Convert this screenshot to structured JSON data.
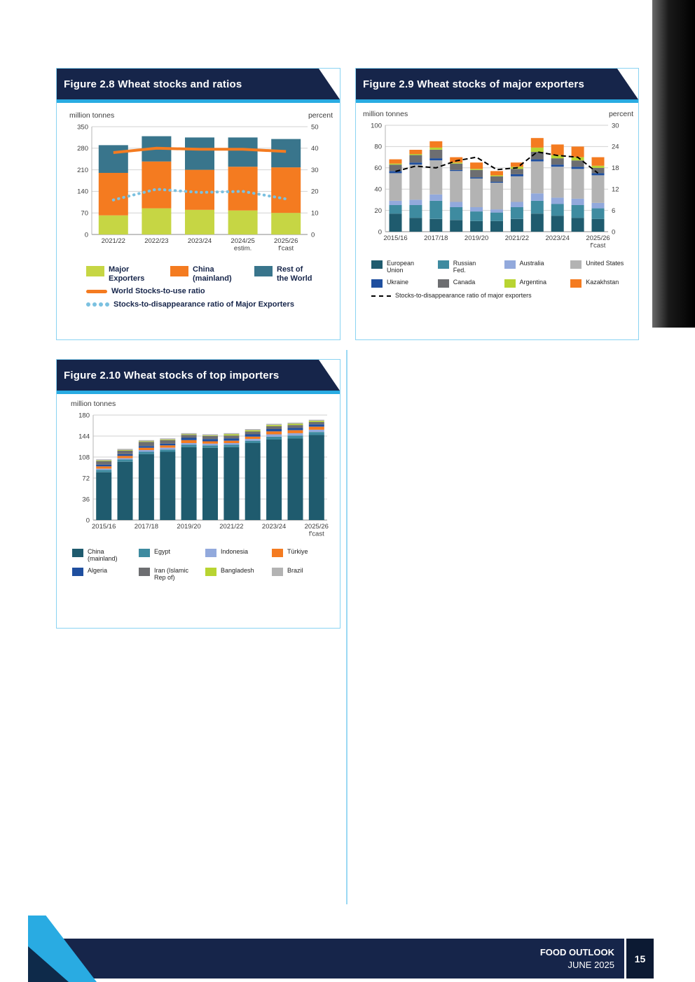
{
  "theme": {
    "header_navy": "#16254a",
    "accent_cyan": "#29abe2",
    "page_number_box": "#0c1a33"
  },
  "footer": {
    "line1": "FOOD OUTLOOK",
    "line2": "JUNE 2025",
    "page_number": "15"
  },
  "figures": [
    {
      "id": "fig28",
      "title": "Figure 2.8 Wheat stocks and ratios",
      "chart_data": {
        "type": "bar",
        "stacked": true,
        "ylabel_left": "million tonnes",
        "ylabel_right": "percent",
        "ylim_left": [
          0,
          350
        ],
        "yticks_left": [
          0,
          70,
          140,
          210,
          280,
          350
        ],
        "ylim_right": [
          0,
          50
        ],
        "yticks_right": [
          0,
          10,
          20,
          30,
          40,
          50
        ],
        "grid": true,
        "categories": [
          "2021/22",
          "2022/23",
          "2023/24",
          "2024/25\nestim.",
          "2025/26\nf'cast"
        ],
        "series": [
          {
            "name": "Major Exporters",
            "color": "#c6d644",
            "values": [
              62,
              85,
              80,
              78,
              70
            ]
          },
          {
            "name": "China (mainland)",
            "color": "#f47b20",
            "values": [
              138,
              152,
              130,
              142,
              148
            ]
          },
          {
            "name": "Rest of the World",
            "color": "#39758c",
            "values": [
              90,
              82,
              105,
              95,
              92
            ]
          }
        ],
        "lines": [
          {
            "name": "World Stocks-to-use ratio",
            "color": "#f47b20",
            "style": "solid",
            "axis": "right",
            "values": [
              38,
              40,
              39.5,
              39.5,
              38.5
            ]
          },
          {
            "name": "Stocks-to-disappearance ratio of Major Exporters",
            "color": "#7bc1e0",
            "style": "dotted",
            "axis": "right",
            "values": [
              16,
              21,
              19.5,
              20,
              16.5
            ]
          }
        ]
      },
      "legend": [
        [
          {
            "type": "rect",
            "color": "#c6d644",
            "label": "Major\nExporters"
          },
          {
            "type": "rect",
            "color": "#f47b20",
            "label": "China\n(mainland)"
          },
          {
            "type": "rect",
            "color": "#39758c",
            "label": "Rest of\nthe World"
          }
        ],
        [
          {
            "type": "line",
            "color": "#f47b20",
            "label": "World Stocks-to-use ratio"
          }
        ],
        [
          {
            "type": "dots",
            "color": "#7bc1e0",
            "label": "Stocks-to-disappearance ratio of Major Exporters"
          }
        ]
      ]
    },
    {
      "id": "fig29",
      "title": "Figure 2.9 Wheat stocks of major exporters",
      "chart_data": {
        "type": "bar",
        "stacked": true,
        "ylabel_left": "million tonnes",
        "ylabel_right": "percent",
        "ylim_left": [
          0,
          100
        ],
        "yticks_left": [
          0,
          20,
          40,
          60,
          80,
          100
        ],
        "ylim_right": [
          0,
          30
        ],
        "yticks_right": [
          0,
          6,
          12,
          18,
          24,
          30
        ],
        "grid": true,
        "categories": [
          "2015/16",
          "2016/17",
          "2017/18",
          "2018/19",
          "2019/20",
          "2020/21",
          "2021/22",
          "2022/23",
          "2023/24",
          "2024/25",
          "2025/26"
        ],
        "xtick_labels": [
          "2015/16",
          "",
          "2017/18",
          "",
          "2019/20",
          "",
          "2021/22",
          "",
          "2023/24",
          "",
          "2025/26\nf'cast"
        ],
        "series": [
          {
            "name": "European Union",
            "color": "#1f5b6e",
            "values": [
              17,
              13,
              12,
              11,
              10,
              10,
              12,
              17,
              15,
              13,
              12
            ]
          },
          {
            "name": "Russian Fed.",
            "color": "#3e8ba0",
            "values": [
              8,
              12,
              17,
              12,
              9,
              8,
              11,
              12,
              11,
              12,
              10
            ]
          },
          {
            "name": "Australia",
            "color": "#92a9dc",
            "values": [
              4,
              5,
              6,
              5,
              4,
              3,
              5,
              7,
              6,
              6,
              5
            ]
          },
          {
            "name": "United States",
            "color": "#b3b3b3",
            "values": [
              26,
              33,
              32,
              29,
              27,
              25,
              24,
              30,
              29,
              28,
              26
            ]
          },
          {
            "name": "Ukraine",
            "color": "#1f4f9f",
            "values": [
              2,
              2,
              2,
              1,
              1,
              1,
              2,
              2,
              2,
              2,
              2
            ]
          },
          {
            "name": "Canada",
            "color": "#6d6e71",
            "values": [
              6,
              7,
              8,
              6,
              7,
              5,
              5,
              7,
              6,
              6,
              5
            ]
          },
          {
            "name": "Argentina",
            "color": "#b8d432",
            "values": [
              1,
              1,
              2,
              1,
              1,
              1,
              2,
              4,
              3,
              3,
              2
            ]
          },
          {
            "name": "Kazakhstan",
            "color": "#f47b20",
            "values": [
              4,
              4,
              6,
              5,
              6,
              4,
              4,
              9,
              10,
              10,
              8
            ]
          }
        ],
        "lines": [
          {
            "name": "Stocks-to-disappearance ratio of major exporters",
            "color": "#000000",
            "style": "dashed",
            "axis": "right",
            "values": [
              17,
              18.5,
              18,
              20,
              21,
              17.5,
              18,
              22.5,
              21.5,
              21,
              16.5
            ]
          }
        ]
      },
      "legend": [
        [
          {
            "type": "rect",
            "color": "#1f5b6e",
            "label": "European Union"
          },
          {
            "type": "rect",
            "color": "#3e8ba0",
            "label": "Russian\nFed."
          },
          {
            "type": "rect",
            "color": "#92a9dc",
            "label": "Australia"
          },
          {
            "type": "rect",
            "color": "#b3b3b3",
            "label": "United States"
          }
        ],
        [
          {
            "type": "rect",
            "color": "#1f4f9f",
            "label": "Ukraine"
          },
          {
            "type": "rect",
            "color": "#6d6e71",
            "label": "Canada"
          },
          {
            "type": "rect",
            "color": "#b8d432",
            "label": "Argentina"
          },
          {
            "type": "rect",
            "color": "#f47b20",
            "label": "Kazakhstan"
          }
        ],
        [
          {
            "type": "dash",
            "color": "#000000",
            "label": "Stocks-to-disappearance ratio of major exporters"
          }
        ]
      ]
    },
    {
      "id": "fig210",
      "title": "Figure 2.10 Wheat stocks of top importers",
      "chart_data": {
        "type": "bar",
        "stacked": true,
        "ylabel_left": "million tonnes",
        "ylim_left": [
          0,
          180
        ],
        "yticks_left": [
          0,
          36,
          72,
          108,
          144,
          180
        ],
        "grid": true,
        "categories": [
          "2015/16",
          "2016/17",
          "2017/18",
          "2018/19",
          "2019/20",
          "2020/21",
          "2021/22",
          "2022/23",
          "2023/24",
          "2024/25",
          "2025/26"
        ],
        "xtick_labels": [
          "2015/16",
          "",
          "2017/18",
          "",
          "2019/20",
          "",
          "2021/22",
          "",
          "2023/24",
          "",
          "2025/26\nf'cast"
        ],
        "series": [
          {
            "name": "China (mainland)",
            "color": "#1f5b6e",
            "values": [
              82,
              100,
              113,
              117,
              125,
              124,
              125,
              132,
              138,
              140,
              146
            ]
          },
          {
            "name": "Egypt",
            "color": "#3e8ba0",
            "values": [
              4,
              4,
              4,
              4,
              4,
              4,
              4,
              4,
              5,
              5,
              5
            ]
          },
          {
            "name": "Indonesia",
            "color": "#92a9dc",
            "values": [
              2,
              2,
              3,
              3,
              3,
              3,
              3,
              3,
              4,
              4,
              4
            ]
          },
          {
            "name": "Türkiye",
            "color": "#f47b20",
            "values": [
              4,
              4,
              4,
              4,
              5,
              4,
              4,
              4,
              5,
              5,
              5
            ]
          },
          {
            "name": "Algeria",
            "color": "#1f4f9f",
            "values": [
              3,
              3,
              3,
              3,
              4,
              4,
              4,
              4,
              4,
              4,
              4
            ]
          },
          {
            "name": "Iran (Islamic Rep of)",
            "color": "#6d6e71",
            "values": [
              6,
              6,
              7,
              6,
              5,
              5,
              5,
              5,
              5,
              5,
              4
            ]
          },
          {
            "name": "Bangladesh",
            "color": "#b8d432",
            "values": [
              1,
              1,
              1,
              1,
              1,
              1,
              2,
              2,
              2,
              2,
              2
            ]
          },
          {
            "name": "Brazil",
            "color": "#b3b3b3",
            "values": [
              2,
              2,
              2,
              2,
              2,
              2,
              2,
              2,
              2,
              2,
              2
            ]
          }
        ],
        "lines": []
      },
      "legend": [
        [
          {
            "type": "rect",
            "color": "#1f5b6e",
            "label": "China\n(mainland)"
          },
          {
            "type": "rect",
            "color": "#3e8ba0",
            "label": "Egypt"
          },
          {
            "type": "rect",
            "color": "#92a9dc",
            "label": "Indonesia"
          },
          {
            "type": "rect",
            "color": "#f47b20",
            "label": "Türkiye"
          }
        ],
        [
          {
            "type": "rect",
            "color": "#1f4f9f",
            "label": "Algeria"
          },
          {
            "type": "rect",
            "color": "#6d6e71",
            "label": "Iran (Islamic Rep of)"
          },
          {
            "type": "rect",
            "color": "#b8d432",
            "label": "Bangladesh"
          },
          {
            "type": "rect",
            "color": "#b3b3b3",
            "label": "Brazil"
          }
        ]
      ]
    }
  ]
}
